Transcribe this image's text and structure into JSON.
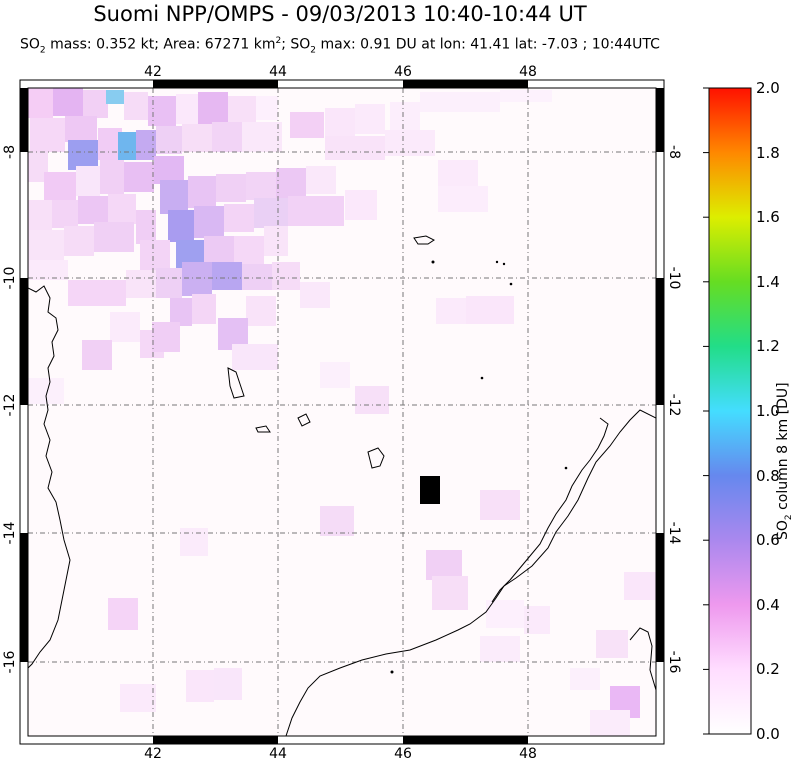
{
  "header": {
    "title": "Suomi NPP/OMPS - 09/03/2013 10:40-10:44 UT",
    "subtitle": "SO2 mass: 0.352 kt; Area: 67271 km2; SO2 max: 0.91 DU at lon: 41.41 lat: -7.03 ; 10:44UTC"
  },
  "map": {
    "lon_range": [
      40,
      50
    ],
    "lat_range": [
      -17,
      -7
    ],
    "lon_ticks": [
      "42",
      "44",
      "46",
      "48"
    ],
    "lat_ticks": [
      "-8",
      "-10",
      "-12",
      "-14",
      "-16"
    ],
    "gridlines": true,
    "islands": [
      "Comoros",
      "Mayotte",
      "Aldabra",
      "Madagascar (north)",
      "Mozambique coast"
    ]
  },
  "colorbar": {
    "label": "SO2 column 8 km [DU]",
    "ticks": [
      "2.0",
      "1.8",
      "1.6",
      "1.4",
      "1.2",
      "1.0",
      "0.8",
      "0.6",
      "0.4",
      "0.2",
      "0.0"
    ],
    "colors": [
      "#ff0000",
      "#ff8800",
      "#ffee00",
      "#66dd22",
      "#22dd88",
      "#44eeff",
      "#55bbee",
      "#7777ee",
      "#bb99ee",
      "#ff99ff",
      "#ffffff"
    ]
  }
}
